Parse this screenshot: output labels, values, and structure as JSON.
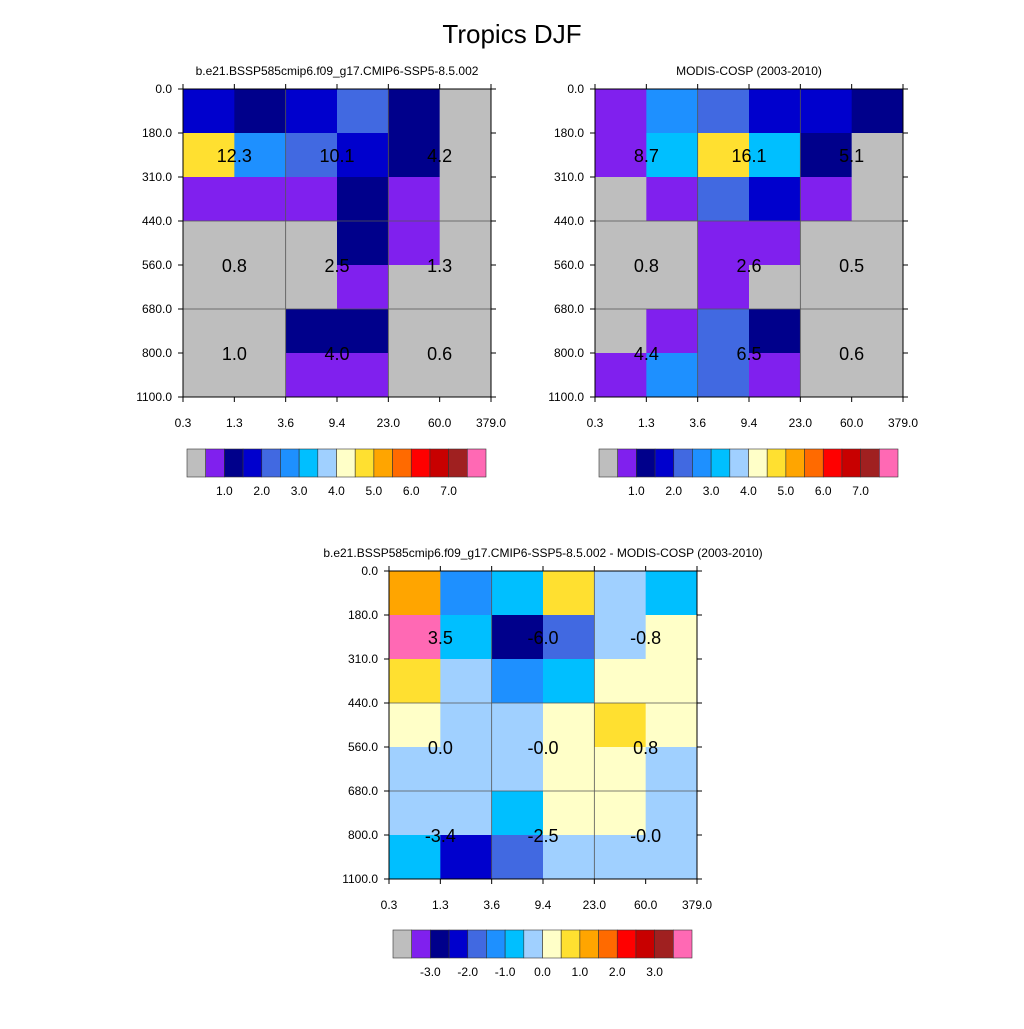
{
  "title": "Tropics DJF",
  "palette": [
    "#BEBEBE",
    "#8020EE",
    "#00008B",
    "#0000CD",
    "#4169E1",
    "#1E90FF",
    "#00BFFF",
    "#A0D0FF",
    "#FFFFC8",
    "#FFE030",
    "#FFA500",
    "#FF6A00",
    "#FF0000",
    "#C80000",
    "#A02020",
    "#FF69B4"
  ],
  "chart_data": [
    {
      "type": "heatmap",
      "title": "b.e21.BSSP585cmip6.f09_g17.CMIP6-SSP5-8.5.002",
      "x_tick_labels": [
        "0.3",
        "1.3",
        "3.6",
        "9.4",
        "23.0",
        "60.0",
        "379.0"
      ],
      "y_tick_labels": [
        "0.0",
        "180.0",
        "310.0",
        "440.0",
        "560.0",
        "680.0",
        "800.0",
        "1100.0"
      ],
      "cell_color_index": [
        [
          3,
          2,
          3,
          4,
          2,
          0
        ],
        [
          9,
          5,
          4,
          3,
          2,
          0
        ],
        [
          1,
          1,
          1,
          2,
          1,
          0
        ],
        [
          0,
          0,
          0,
          2,
          1,
          0
        ],
        [
          0,
          0,
          0,
          1,
          0,
          0
        ],
        [
          0,
          0,
          2,
          2,
          0,
          0
        ],
        [
          0,
          0,
          1,
          1,
          0,
          0
        ]
      ],
      "block_labels": [
        [
          "12.3",
          "10.1",
          "4.2"
        ],
        [
          "0.8",
          "2.5",
          "1.3"
        ],
        [
          "1.0",
          "4.0",
          "0.6"
        ]
      ],
      "colorbar_labels": [
        "1.0",
        "2.0",
        "3.0",
        "4.0",
        "5.0",
        "6.0",
        "7.0"
      ]
    },
    {
      "type": "heatmap",
      "title": "MODIS-COSP (2003-2010)",
      "x_tick_labels": [
        "0.3",
        "1.3",
        "3.6",
        "9.4",
        "23.0",
        "60.0",
        "379.0"
      ],
      "y_tick_labels": [
        "0.0",
        "180.0",
        "310.0",
        "440.0",
        "560.0",
        "680.0",
        "800.0",
        "1100.0"
      ],
      "cell_color_index": [
        [
          1,
          5,
          4,
          3,
          3,
          2
        ],
        [
          1,
          6,
          9,
          6,
          2,
          0
        ],
        [
          0,
          1,
          4,
          3,
          1,
          0
        ],
        [
          0,
          0,
          1,
          1,
          0,
          0
        ],
        [
          0,
          0,
          1,
          0,
          0,
          0
        ],
        [
          0,
          1,
          4,
          2,
          0,
          0
        ],
        [
          1,
          5,
          4,
          1,
          0,
          0
        ]
      ],
      "block_labels": [
        [
          "8.7",
          "16.1",
          "5.1"
        ],
        [
          "0.8",
          "2.6",
          "0.5"
        ],
        [
          "4.4",
          "6.5",
          "0.6"
        ]
      ],
      "colorbar_labels": [
        "1.0",
        "2.0",
        "3.0",
        "4.0",
        "5.0",
        "6.0",
        "7.0"
      ]
    },
    {
      "type": "heatmap",
      "title": "b.e21.BSSP585cmip6.f09_g17.CMIP6-SSP5-8.5.002 - MODIS-COSP (2003-2010)",
      "x_tick_labels": [
        "0.3",
        "1.3",
        "3.6",
        "9.4",
        "23.0",
        "60.0",
        "379.0"
      ],
      "y_tick_labels": [
        "0.0",
        "180.0",
        "310.0",
        "440.0",
        "560.0",
        "680.0",
        "800.0",
        "1100.0"
      ],
      "cell_color_index": [
        [
          10,
          5,
          6,
          9,
          7,
          6
        ],
        [
          15,
          6,
          2,
          4,
          7,
          8
        ],
        [
          9,
          7,
          5,
          6,
          8,
          8
        ],
        [
          8,
          7,
          7,
          8,
          9,
          8
        ],
        [
          7,
          7,
          7,
          8,
          8,
          7
        ],
        [
          7,
          7,
          6,
          8,
          8,
          7
        ],
        [
          6,
          3,
          4,
          7,
          7,
          7
        ]
      ],
      "block_labels": [
        [
          "3.5",
          "-6.0",
          "-0.8"
        ],
        [
          "0.0",
          "-0.0",
          "0.8"
        ],
        [
          "-3.4",
          "-2.5",
          "-0.0"
        ]
      ],
      "colorbar_labels": [
        "-3.0",
        "-2.0",
        "-1.0",
        "0.0",
        "1.0",
        "2.0",
        "3.0"
      ]
    }
  ]
}
